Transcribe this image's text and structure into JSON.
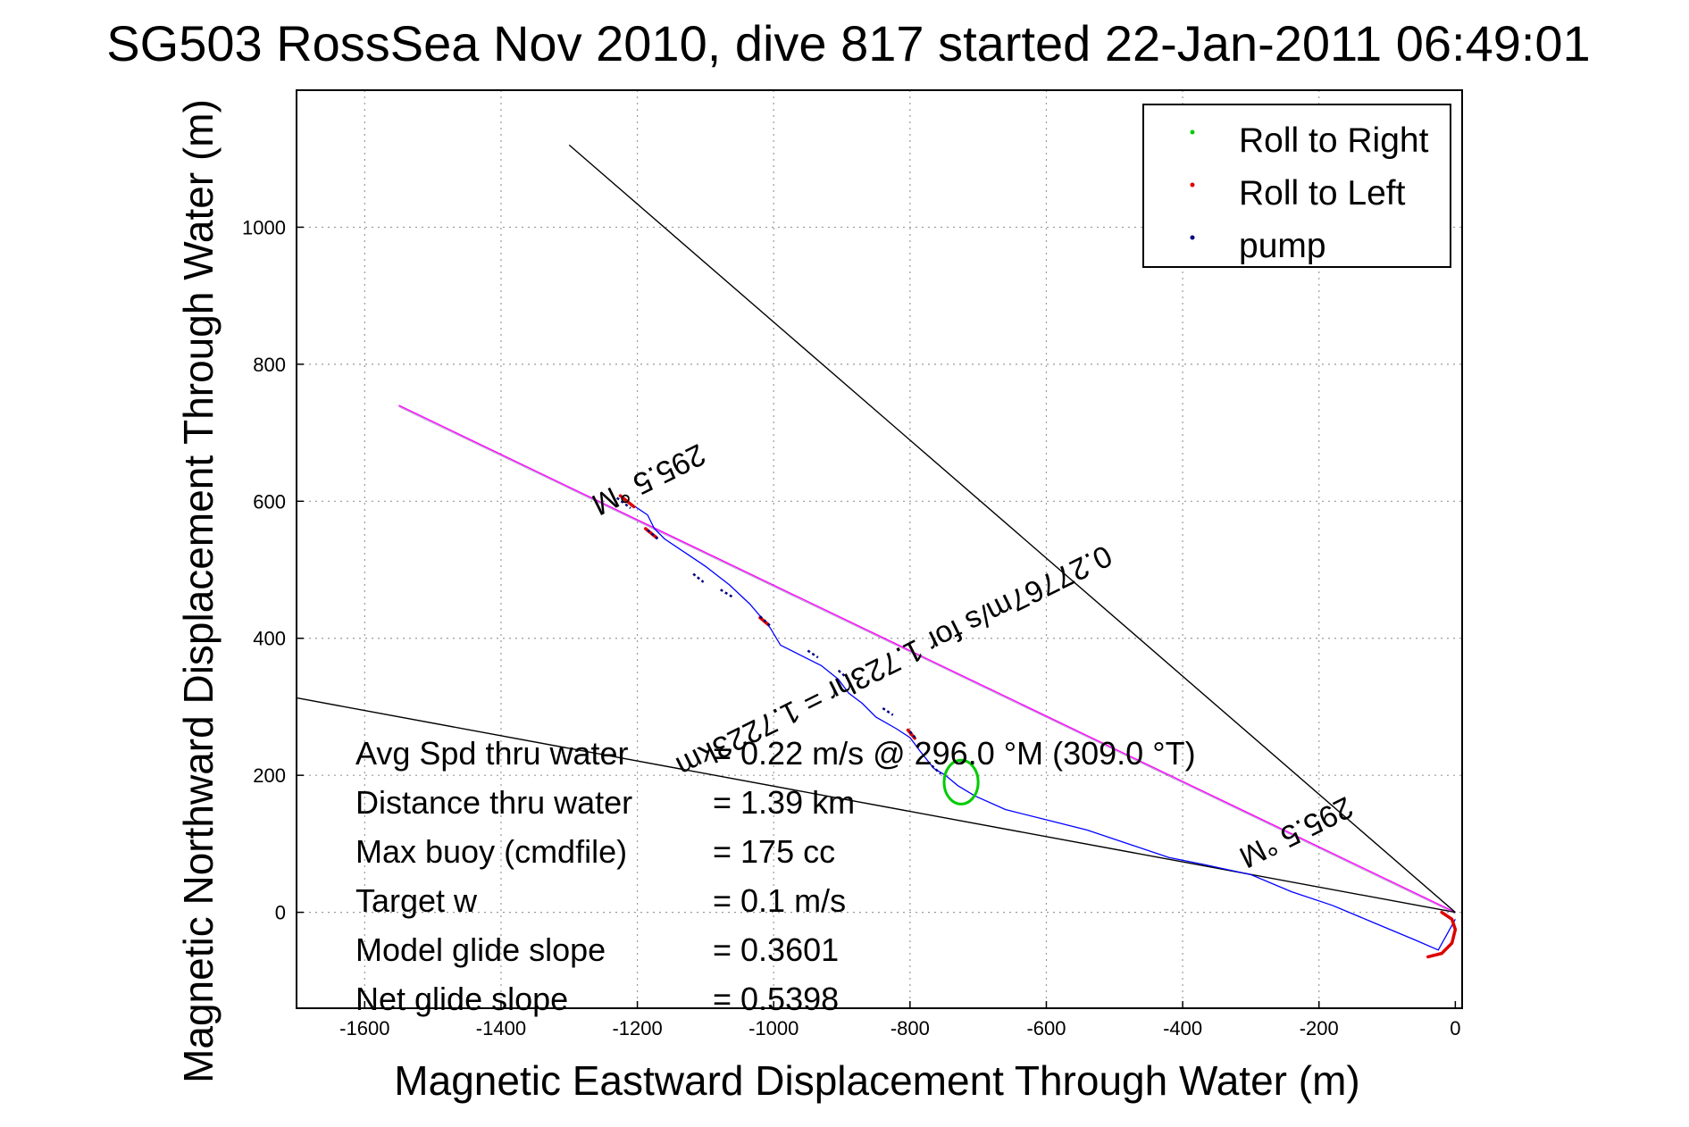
{
  "chart_data": {
    "type": "line",
    "title": "SG503 RossSea Nov 2010, dive 817 started 22-Jan-2011 06:49:01",
    "xlabel": "Magnetic Eastward Displacement Through Water (m)",
    "ylabel": "Magnetic Northward Displacement Through Water (m)",
    "xlim": [
      -1700,
      10
    ],
    "ylim": [
      -140,
      1200
    ],
    "xticks": [
      -1600,
      -1400,
      -1200,
      -1000,
      -800,
      -600,
      -400,
      -200,
      0
    ],
    "yticks": [
      0,
      200,
      400,
      600,
      800,
      1000
    ],
    "grid": true,
    "legend_position": "top-right",
    "legend": [
      {
        "label": "Roll to Right",
        "color": "#00cc00"
      },
      {
        "label": "Roll to Left",
        "color": "#dd0000"
      },
      {
        "label": "pump",
        "color": "#000080"
      }
    ],
    "track": {
      "color": "#0000ff",
      "x": [
        -1220,
        -1200,
        -1185,
        -1175,
        -1160,
        -1130,
        -1100,
        -1065,
        -1035,
        -1005,
        -990,
        -960,
        -930,
        -905,
        -890,
        -870,
        -850,
        -820,
        -800,
        -785,
        -765,
        -748,
        -730,
        -705,
        -660,
        -600,
        -540,
        -480,
        -420,
        -370,
        -300,
        -240,
        -180,
        -120,
        -60,
        -25,
        0
      ],
      "y": [
        605,
        590,
        580,
        560,
        545,
        525,
        505,
        478,
        450,
        415,
        390,
        375,
        360,
        340,
        320,
        305,
        285,
        268,
        255,
        235,
        210,
        200,
        185,
        170,
        150,
        135,
        120,
        100,
        80,
        70,
        55,
        30,
        10,
        -15,
        -40,
        -55,
        -10
      ]
    },
    "pump_segments": [
      {
        "x": [
          -1230,
          -1210
        ],
        "y": [
          605,
          590
        ]
      },
      {
        "x": [
          -1185,
          -1170
        ],
        "y": [
          558,
          545
        ]
      },
      {
        "x": [
          -1118,
          -1103
        ],
        "y": [
          494,
          482
        ]
      },
      {
        "x": [
          -1078,
          -1060
        ],
        "y": [
          471,
          460
        ]
      },
      {
        "x": [
          -1020,
          -1005
        ],
        "y": [
          432,
          418
        ]
      },
      {
        "x": [
          -950,
          -935
        ],
        "y": [
          382,
          372
        ]
      },
      {
        "x": [
          -905,
          -890
        ],
        "y": [
          353,
          340
        ]
      },
      {
        "x": [
          -840,
          -825
        ],
        "y": [
          298,
          288
        ]
      },
      {
        "x": [
          -800,
          -790
        ],
        "y": [
          264,
          252
        ]
      },
      {
        "x": [
          -768,
          -755
        ],
        "y": [
          214,
          202
        ]
      }
    ],
    "left_roll_segments": [
      {
        "x": [
          -1225,
          -1205
        ],
        "y": [
          608,
          592
        ]
      },
      {
        "x": [
          -1188,
          -1172
        ],
        "y": [
          560,
          547
        ]
      },
      {
        "x": [
          -1020,
          -1008
        ],
        "y": [
          430,
          420
        ]
      },
      {
        "x": [
          -803,
          -793
        ],
        "y": [
          266,
          254
        ]
      },
      {
        "x": [
          -20,
          -5,
          0,
          -5,
          -20,
          -40
        ],
        "y": [
          0,
          -10,
          -25,
          -45,
          -60,
          -65
        ]
      }
    ],
    "right_roll_loop": {
      "cx": -725,
      "cy": 190,
      "rx": 25,
      "ry": 32
    },
    "reference_lines": [
      {
        "name": "heading-line",
        "color": "#ff00ff",
        "x": [
          -1550,
          0
        ],
        "y": [
          740,
          0
        ]
      },
      {
        "name": "upper-bound-line",
        "color": "#000000",
        "x": [
          -1300,
          0
        ],
        "y": [
          1120,
          0
        ]
      },
      {
        "name": "lower-bound-line",
        "color": "#000000",
        "x": [
          -1700,
          0
        ],
        "y": [
          313,
          0
        ]
      }
    ],
    "annotations": [
      {
        "text": "295.5 °M",
        "x": -1190,
        "y": 645,
        "rotate": 153.5
      },
      {
        "text": "0.27767m/s for 1.723hr = 1.7223km",
        "x": -830,
        "y": 380,
        "rotate": 153.5
      },
      {
        "text": "295.5 °M",
        "x": -240,
        "y": 130,
        "rotate": 153.5
      }
    ]
  },
  "stats": [
    {
      "label": "Avg Spd thru water",
      "value": "=  0.22 m/s @ 296.0 °M (309.0 °T)"
    },
    {
      "label": "Distance thru water",
      "value": "=  1.39 km"
    },
    {
      "label": "Max buoy (cmdfile)",
      "value": "= 175 cc"
    },
    {
      "label": "Target w",
      "value": "= 0.1 m/s"
    },
    {
      "label": "Model glide slope",
      "value": "= 0.3601"
    },
    {
      "label": "Net glide slope",
      "value": "= 0.5398"
    }
  ]
}
